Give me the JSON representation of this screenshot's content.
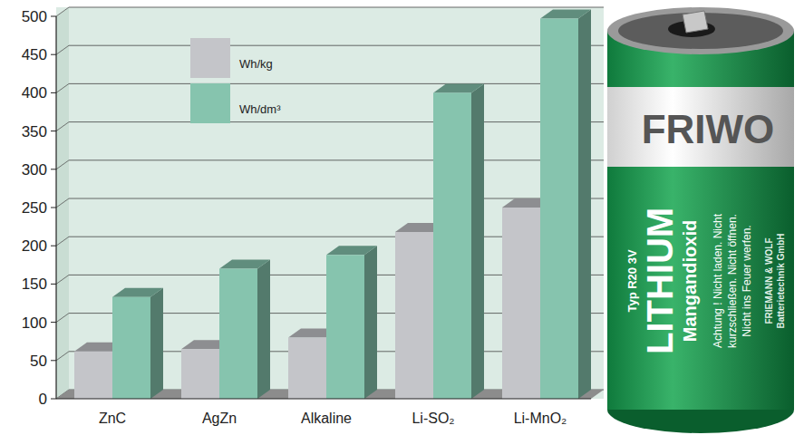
{
  "chart_data": {
    "type": "bar",
    "categories": [
      "ZnC",
      "AgZn",
      "Alkaline",
      "Li-SO₂",
      "Li-MnO₂"
    ],
    "series": [
      {
        "name": "Wh/kg",
        "color": "#c4c5c9",
        "values": [
          62,
          65,
          80,
          218,
          250
        ]
      },
      {
        "name": "Wh/dm³",
        "color": "#86c4ae",
        "values": [
          133,
          170,
          188,
          400,
          497
        ]
      }
    ],
    "ylim": [
      0,
      500
    ],
    "yticks": [
      0,
      50,
      100,
      150,
      200,
      250,
      300,
      350,
      400,
      450,
      500
    ],
    "grid": true,
    "legend": "upper left",
    "annotations": [
      "FRIWO",
      "Typ R20 3V",
      "LITHIUM",
      "Mangandioxid",
      "Achtung ! Nicht laden. Nicht",
      "kurzschließen. Nicht öffnen.",
      "Nicht ins Feuer werfen.",
      "FRIEMANN & WOLF",
      "Batterietechnik GmbH"
    ]
  }
}
